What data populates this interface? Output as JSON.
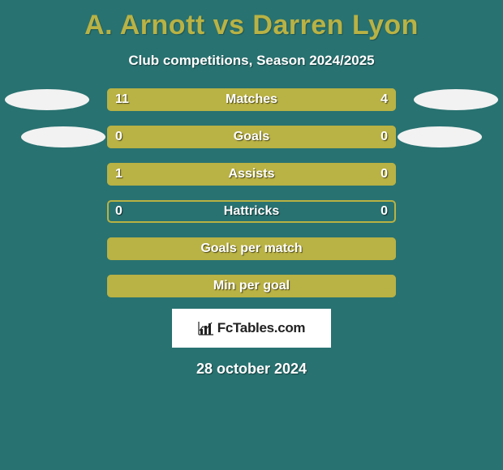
{
  "colors": {
    "background": "#287271",
    "accent": "#b9b244",
    "ellipse": "#f2f2f2",
    "text_light": "#ffffff",
    "title": "#b9b244"
  },
  "title": "A. Arnott vs Darren Lyon",
  "subtitle": "Club competitions, Season 2024/2025",
  "date": "28 october 2024",
  "logo": {
    "text": "FcTables.com",
    "icon_name": "chart-icon"
  },
  "rows": [
    {
      "label": "Matches",
      "left_value": "11",
      "right_value": "4",
      "left_num": 11,
      "right_num": 4,
      "left_fill_pct": 70,
      "right_fill_pct": 30,
      "show_ellipses": true,
      "show_values": true,
      "ellipse_shift": 0
    },
    {
      "label": "Goals",
      "left_value": "0",
      "right_value": "0",
      "left_num": 0,
      "right_num": 0,
      "left_fill_pct": 100,
      "right_fill_pct": 0,
      "show_ellipses": true,
      "show_values": true,
      "ellipse_shift": 20
    },
    {
      "label": "Assists",
      "left_value": "1",
      "right_value": "0",
      "left_num": 1,
      "right_num": 0,
      "left_fill_pct": 77,
      "right_fill_pct": 23,
      "show_ellipses": false,
      "show_values": true
    },
    {
      "label": "Hattricks",
      "left_value": "0",
      "right_value": "0",
      "left_num": 0,
      "right_num": 0,
      "left_fill_pct": 0,
      "right_fill_pct": 0,
      "show_ellipses": false,
      "show_values": true
    },
    {
      "label": "Goals per match",
      "left_value": "",
      "right_value": "",
      "left_num": 0,
      "right_num": 0,
      "left_fill_pct": 100,
      "right_fill_pct": 0,
      "show_ellipses": false,
      "show_values": false
    },
    {
      "label": "Min per goal",
      "left_value": "",
      "right_value": "",
      "left_num": 0,
      "right_num": 0,
      "left_fill_pct": 100,
      "right_fill_pct": 0,
      "show_ellipses": false,
      "show_values": false
    }
  ]
}
